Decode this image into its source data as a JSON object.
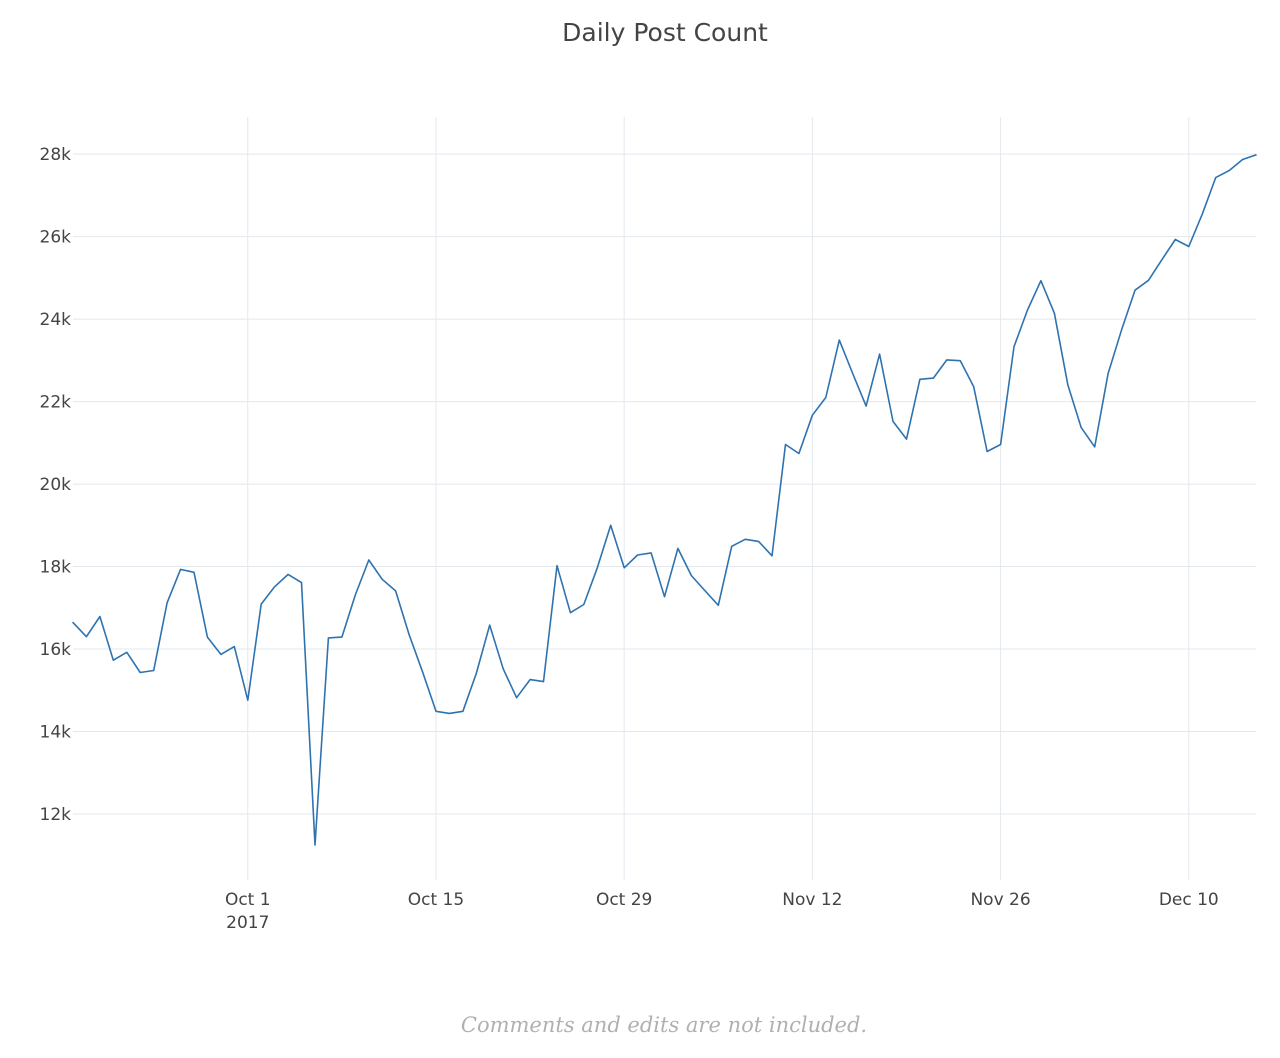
{
  "chart_data": {
    "type": "line",
    "title": "Daily Post Count",
    "xlabel": "",
    "ylabel": "",
    "x_start": "2017-09-18",
    "x_end": "2017-12-15",
    "ylim": [
      10400,
      28900
    ],
    "y_ticks": [
      {
        "value": 12000,
        "label": "12k"
      },
      {
        "value": 14000,
        "label": "14k"
      },
      {
        "value": 16000,
        "label": "16k"
      },
      {
        "value": 18000,
        "label": "18k"
      },
      {
        "value": 20000,
        "label": "20k"
      },
      {
        "value": 22000,
        "label": "22k"
      },
      {
        "value": 24000,
        "label": "24k"
      },
      {
        "value": 26000,
        "label": "26k"
      },
      {
        "value": 28000,
        "label": "28k"
      }
    ],
    "x_ticks": [
      {
        "date": "2017-10-01",
        "label": "Oct 1",
        "sublabel": "2017"
      },
      {
        "date": "2017-10-15",
        "label": "Oct 15",
        "sublabel": ""
      },
      {
        "date": "2017-10-29",
        "label": "Oct 29",
        "sublabel": ""
      },
      {
        "date": "2017-11-12",
        "label": "Nov 12",
        "sublabel": ""
      },
      {
        "date": "2017-11-26",
        "label": "Nov 26",
        "sublabel": ""
      },
      {
        "date": "2017-12-10",
        "label": "Dec 10",
        "sublabel": ""
      }
    ],
    "grid": true,
    "legend": "none",
    "series": [
      {
        "color": "#2e73b0",
        "x": [
          "2017-09-18",
          "2017-09-19",
          "2017-09-20",
          "2017-09-21",
          "2017-09-22",
          "2017-09-23",
          "2017-09-24",
          "2017-09-25",
          "2017-09-26",
          "2017-09-27",
          "2017-09-28",
          "2017-09-29",
          "2017-09-30",
          "2017-10-01",
          "2017-10-02",
          "2017-10-03",
          "2017-10-04",
          "2017-10-05",
          "2017-10-06",
          "2017-10-07",
          "2017-10-08",
          "2017-10-09",
          "2017-10-10",
          "2017-10-11",
          "2017-10-12",
          "2017-10-13",
          "2017-10-14",
          "2017-10-15",
          "2017-10-16",
          "2017-10-17",
          "2017-10-18",
          "2017-10-19",
          "2017-10-20",
          "2017-10-21",
          "2017-10-22",
          "2017-10-23",
          "2017-10-24",
          "2017-10-25",
          "2017-10-26",
          "2017-10-27",
          "2017-10-28",
          "2017-10-29",
          "2017-10-30",
          "2017-10-31",
          "2017-11-01",
          "2017-11-02",
          "2017-11-03",
          "2017-11-04",
          "2017-11-05",
          "2017-11-06",
          "2017-11-07",
          "2017-11-08",
          "2017-11-09",
          "2017-11-10",
          "2017-11-11",
          "2017-11-12",
          "2017-11-13",
          "2017-11-14",
          "2017-11-15",
          "2017-11-16",
          "2017-11-17",
          "2017-11-18",
          "2017-11-19",
          "2017-11-20",
          "2017-11-21",
          "2017-11-22",
          "2017-11-23",
          "2017-11-24",
          "2017-11-25",
          "2017-11-26",
          "2017-11-27",
          "2017-11-28",
          "2017-11-29",
          "2017-11-30",
          "2017-12-01",
          "2017-12-02",
          "2017-12-03",
          "2017-12-04",
          "2017-12-05",
          "2017-12-06",
          "2017-12-07",
          "2017-12-08",
          "2017-12-09",
          "2017-12-10",
          "2017-12-11",
          "2017-12-12",
          "2017-12-13",
          "2017-12-14",
          "2017-12-15"
        ],
        "values": [
          16640,
          16300,
          16790,
          15730,
          15920,
          15430,
          15480,
          17120,
          17930,
          17860,
          16290,
          15870,
          16060,
          14760,
          17090,
          17510,
          17810,
          17610,
          11250,
          16270,
          16290,
          17310,
          18160,
          17690,
          17410,
          16350,
          15450,
          14490,
          14440,
          14490,
          15410,
          16580,
          15520,
          14820,
          15260,
          15210,
          18020,
          16880,
          17080,
          17970,
          19000,
          17970,
          18280,
          18330,
          17270,
          18440,
          17780,
          17420,
          17060,
          18490,
          18660,
          18610,
          18260,
          20960,
          20740,
          21670,
          22100,
          23490,
          22680,
          21890,
          23150,
          21520,
          21090,
          22540,
          22570,
          23010,
          22990,
          22360,
          20790,
          20960,
          23330,
          24220,
          24930,
          24140,
          22410,
          21370,
          20900,
          22680,
          23740,
          24700,
          24940,
          25440,
          25930,
          25760,
          26540,
          27430,
          27600,
          27870,
          27980
        ]
      }
    ]
  },
  "caption": "Comments and edits are not included."
}
